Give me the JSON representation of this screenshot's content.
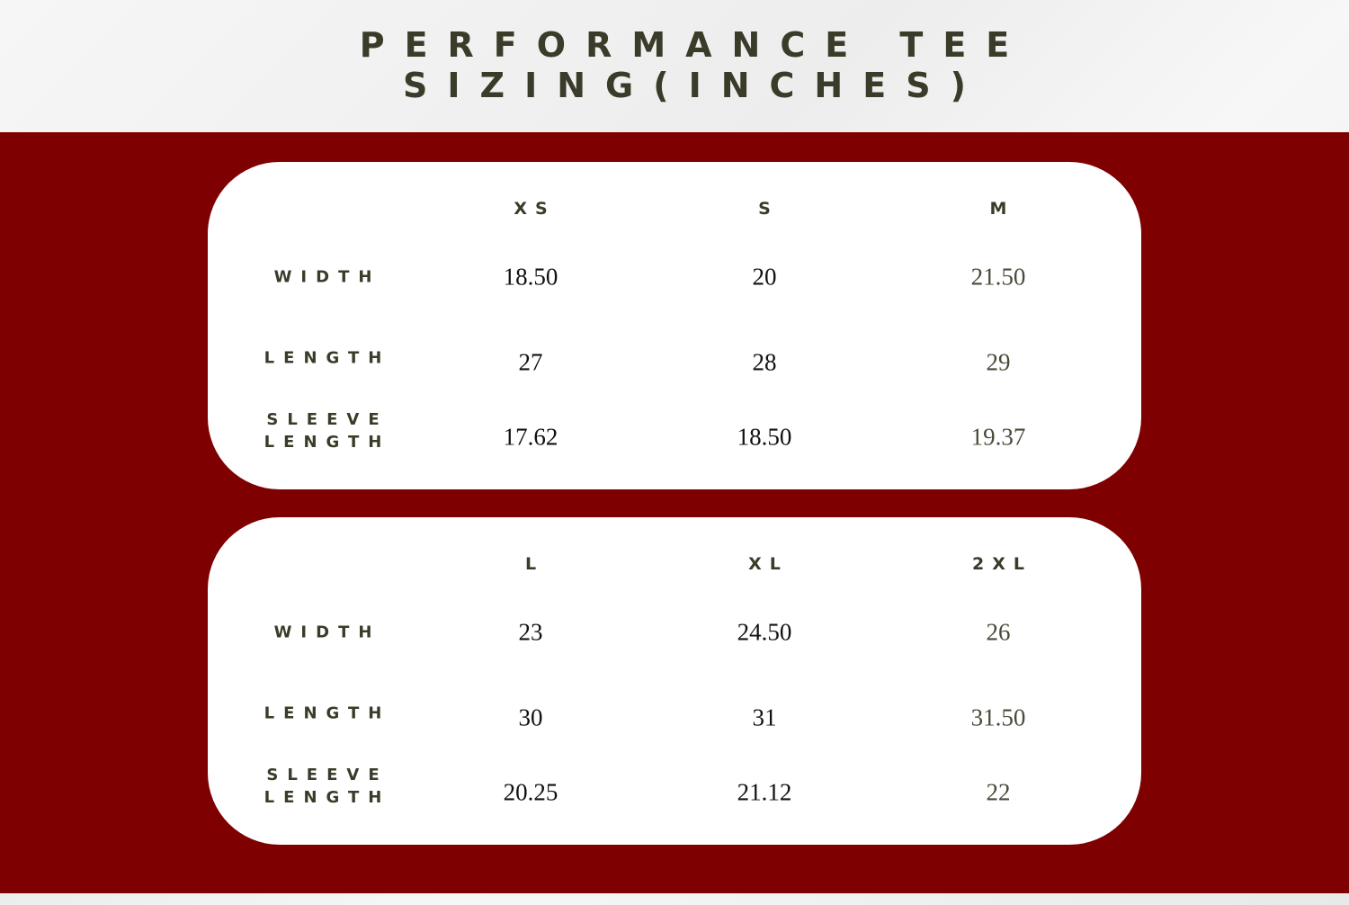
{
  "title": {
    "line1": "PERFORMANCE TEE",
    "line2": "SIZING(INCHES)"
  },
  "colors": {
    "band": "#7f0000",
    "text": "#3b3b29",
    "card": "#ffffff"
  },
  "row_labels": {
    "width": "WIDTH",
    "length": "LENGTH",
    "sleeve_line1": "SLEEVE",
    "sleeve_line2": "LENGTH"
  },
  "tables": [
    {
      "sizes": [
        "XS",
        "S",
        "M"
      ],
      "width": [
        "18.50",
        "20",
        "21.50"
      ],
      "length": [
        "27",
        "28",
        "29"
      ],
      "sleeve_length": [
        "17.62",
        "18.50",
        "19.37"
      ]
    },
    {
      "sizes": [
        "L",
        "XL",
        "2XL"
      ],
      "width": [
        "23",
        "24.50",
        "26"
      ],
      "length": [
        "30",
        "31",
        "31.50"
      ],
      "sleeve_length": [
        "20.25",
        "21.12",
        "22"
      ]
    }
  ]
}
